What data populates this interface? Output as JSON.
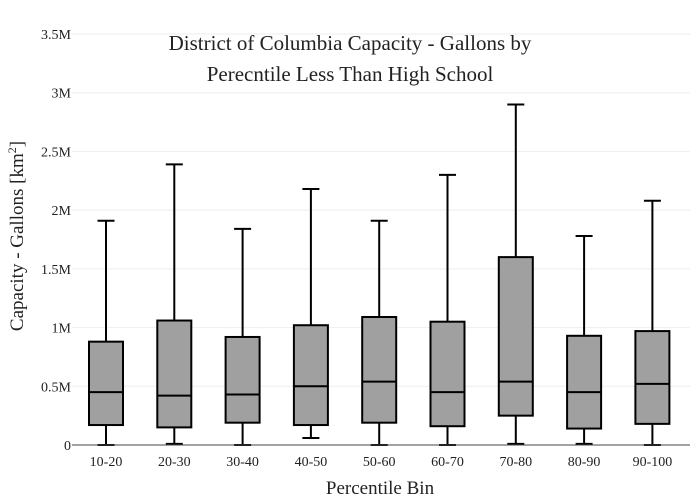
{
  "chart_data": {
    "type": "box",
    "title_lines": [
      "District of Columbia Capacity - Gallons by",
      "Perecntile Less Than High School"
    ],
    "xlabel": "Percentile Bin",
    "ylabel_main": "Capacity - Gallons  [km",
    "ylabel_sup": "2",
    "ylabel_end": "]",
    "ylim": [
      0,
      3500000
    ],
    "yticks": [
      0,
      500000,
      1000000,
      1500000,
      2000000,
      2500000,
      3000000,
      3500000
    ],
    "ytick_labels": [
      "0",
      "0.5M",
      "1M",
      "1.5M",
      "2M",
      "2.5M",
      "3M",
      "3.5M"
    ],
    "grid": true,
    "categories": [
      "10-20",
      "20-30",
      "30-40",
      "40-50",
      "50-60",
      "60-70",
      "70-80",
      "80-90",
      "90-100"
    ],
    "boxes": [
      {
        "min": 0,
        "q1": 170000,
        "median": 450000,
        "q3": 880000,
        "max": 1910000
      },
      {
        "min": 10000,
        "q1": 150000,
        "median": 420000,
        "q3": 1060000,
        "max": 2390000
      },
      {
        "min": 0,
        "q1": 190000,
        "median": 430000,
        "q3": 920000,
        "max": 1840000
      },
      {
        "min": 60000,
        "q1": 170000,
        "median": 500000,
        "q3": 1020000,
        "max": 2180000
      },
      {
        "min": 0,
        "q1": 190000,
        "median": 540000,
        "q3": 1090000,
        "max": 1910000
      },
      {
        "min": 0,
        "q1": 160000,
        "median": 450000,
        "q3": 1050000,
        "max": 2300000
      },
      {
        "min": 10000,
        "q1": 250000,
        "median": 540000,
        "q3": 1600000,
        "max": 2900000
      },
      {
        "min": 10000,
        "q1": 140000,
        "median": 450000,
        "q3": 930000,
        "max": 1780000
      },
      {
        "min": 0,
        "q1": 180000,
        "median": 520000,
        "q3": 970000,
        "max": 2080000
      }
    ],
    "box_fill": "#a0a0a0",
    "line_color": "#000000",
    "grid_color": "#eeeeee"
  }
}
